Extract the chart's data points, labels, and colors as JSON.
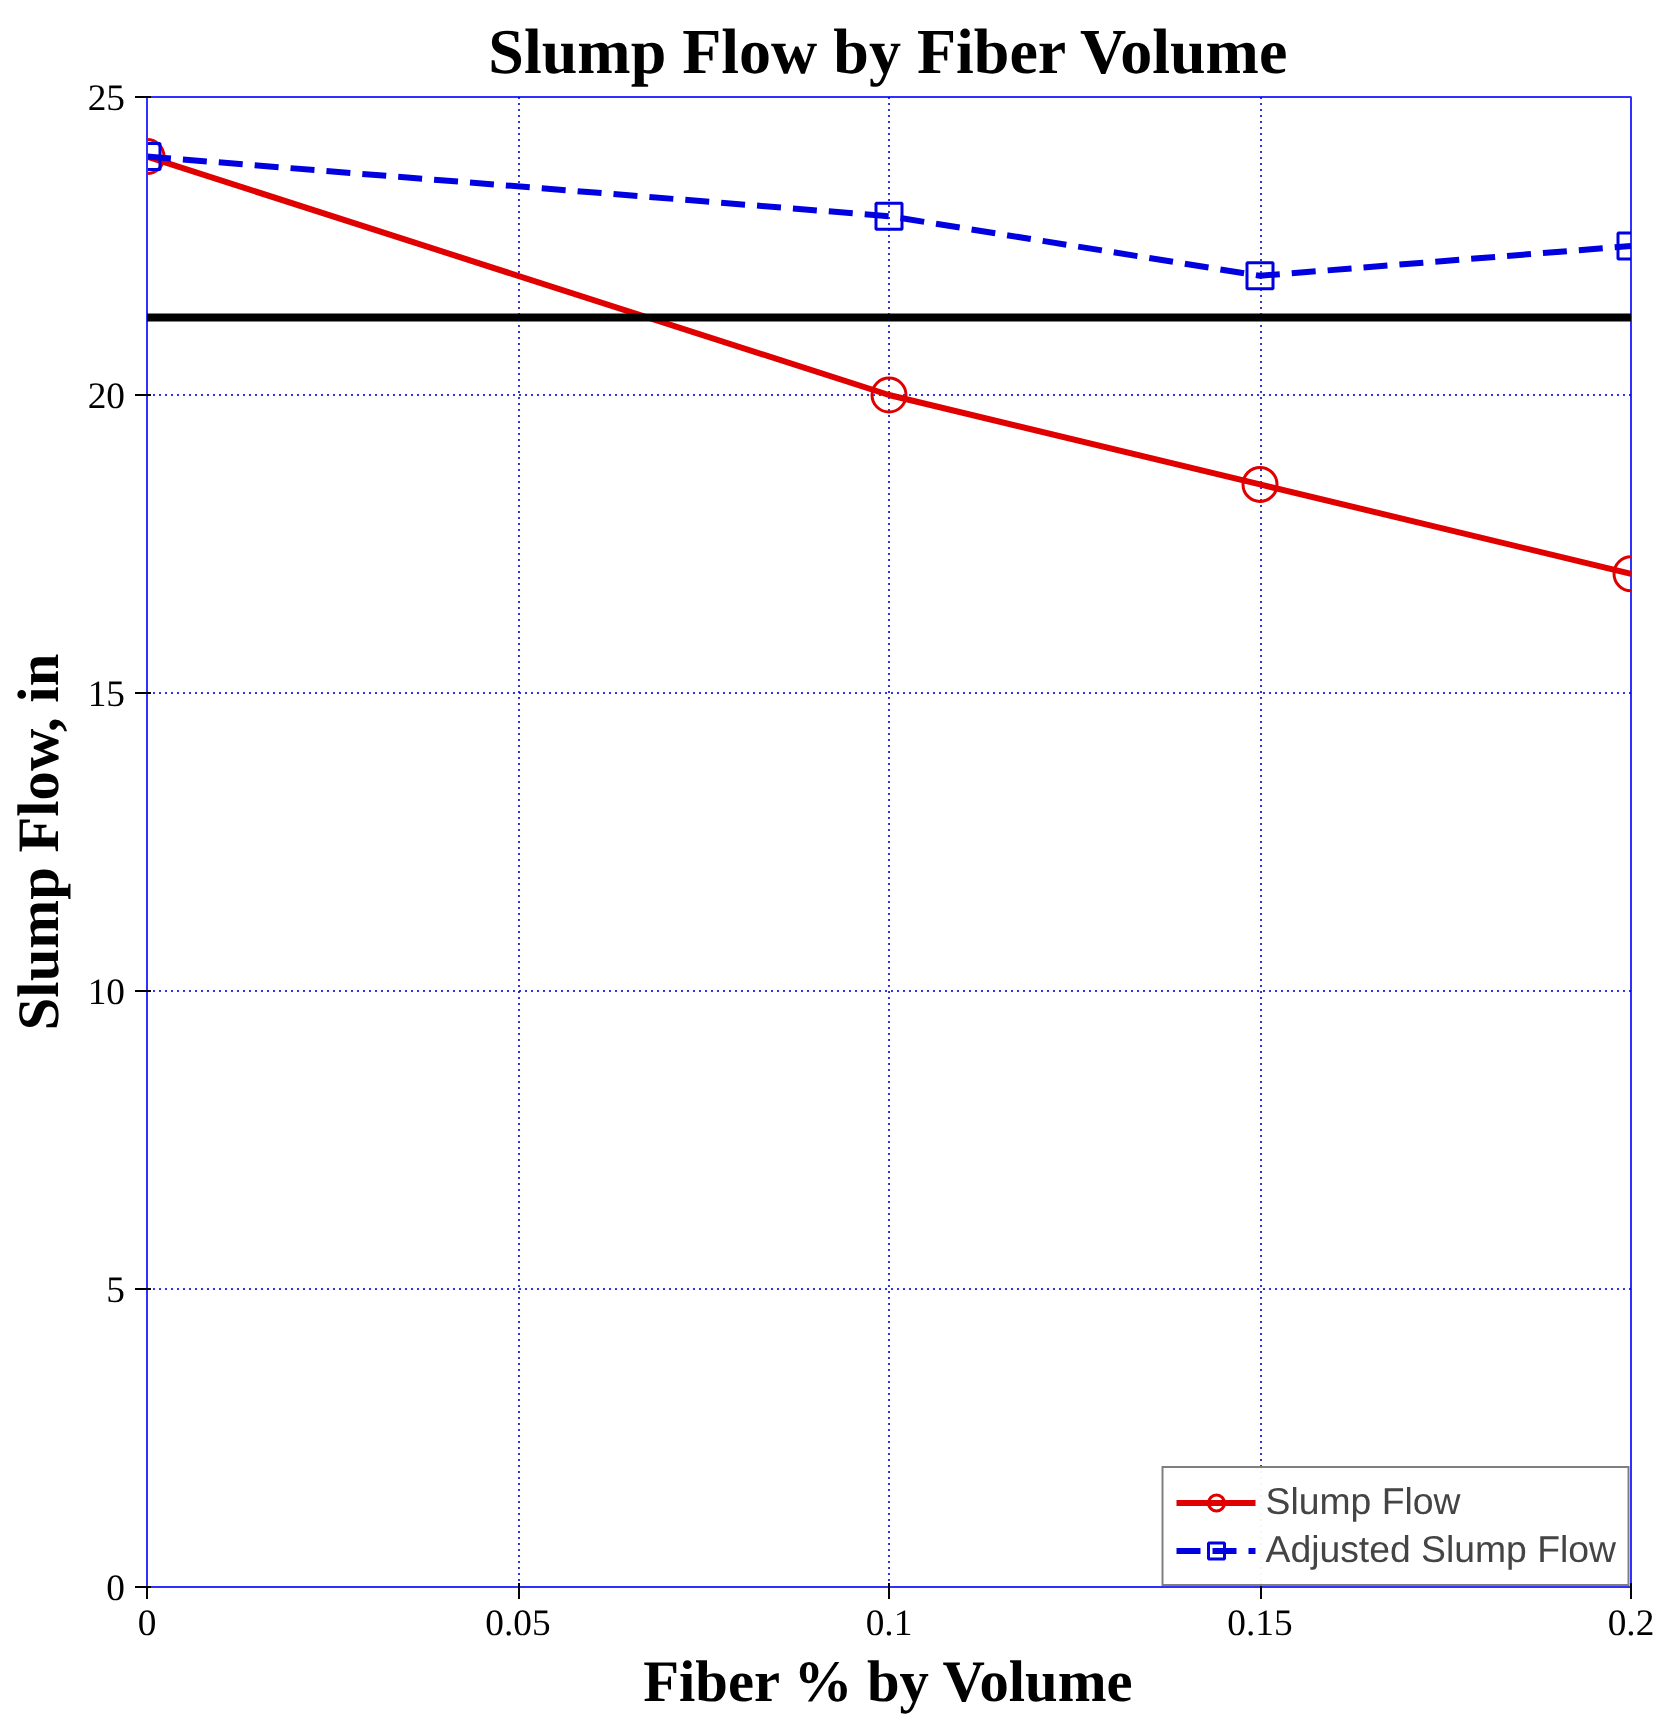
{
  "chart_data": {
    "type": "line",
    "title": "Slump Flow by Fiber Volume",
    "xlabel": "Fiber % by Volume",
    "ylabel": "Slump Flow, in",
    "x": [
      0,
      0.1,
      0.15,
      0.2
    ],
    "series": [
      {
        "name": "Slump Flow",
        "color": "#e00000",
        "values": [
          24,
          20,
          18.5,
          17
        ],
        "marker": "circle",
        "line_style": "solid"
      },
      {
        "name": "Adjusted Slump Flow",
        "color": "#0000e0",
        "values": [
          24,
          23,
          22,
          22.5
        ],
        "marker": "square",
        "line_style": "dashed"
      }
    ],
    "xlim": [
      0,
      0.2
    ],
    "xticks": [
      0,
      0.05,
      0.1,
      0.15,
      0.2
    ],
    "ylim": [
      0,
      25
    ],
    "yticks": [
      0,
      5,
      10,
      15,
      20,
      25
    ],
    "ref_lines": [
      {
        "axis": "y",
        "value": 21.3,
        "color": "#000000"
      }
    ],
    "grid": true,
    "legend": "bottom right"
  }
}
